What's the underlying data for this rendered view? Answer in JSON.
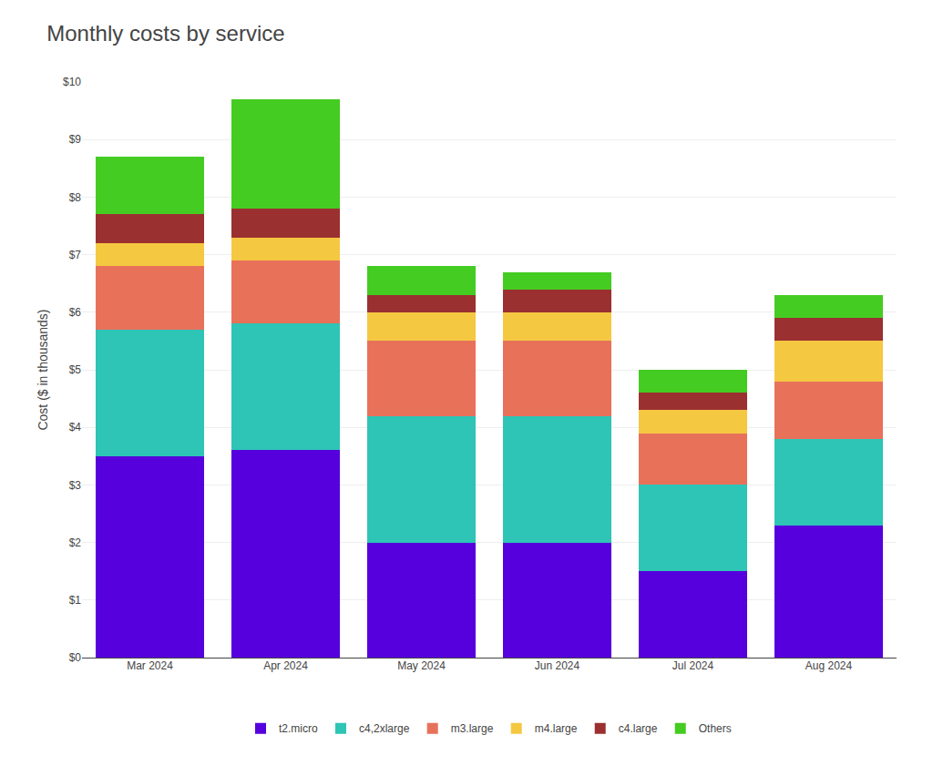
{
  "chart_data": {
    "type": "bar",
    "title": "Monthly costs by service",
    "ylabel": "Cost ($ in thousands)",
    "categories": [
      "Mar 2024",
      "Apr 2024",
      "May 2024",
      "Jun 2024",
      "Jul 2024",
      "Aug 2024"
    ],
    "series": [
      {
        "name": "t2.micro",
        "color": "#5500dd",
        "values": [
          3.5,
          3.6,
          2.0,
          2.0,
          1.5,
          2.3
        ]
      },
      {
        "name": "c4,2xlarge",
        "color": "#2ec4b6",
        "values": [
          2.2,
          2.2,
          2.2,
          2.2,
          1.5,
          1.5
        ]
      },
      {
        "name": "m3.large",
        "color": "#e8715a",
        "values": [
          1.1,
          1.1,
          1.3,
          1.3,
          0.9,
          1.0
        ]
      },
      {
        "name": "m4.large",
        "color": "#f5c842",
        "values": [
          0.4,
          0.4,
          0.5,
          0.5,
          0.4,
          0.7
        ]
      },
      {
        "name": "c4.large",
        "color": "#9b3030",
        "values": [
          0.5,
          0.5,
          0.3,
          0.4,
          0.3,
          0.4
        ]
      },
      {
        "name": "Others",
        "color": "#44cc22",
        "values": [
          1.0,
          1.9,
          0.5,
          0.3,
          0.4,
          0.4
        ]
      }
    ],
    "stacked": true,
    "ylim": [
      0,
      10
    ],
    "yticks": [
      {
        "value": 0,
        "label": "$0"
      },
      {
        "value": 1,
        "label": "$1"
      },
      {
        "value": 2,
        "label": "$2"
      },
      {
        "value": 3,
        "label": "$3"
      },
      {
        "value": 4,
        "label": "$4"
      },
      {
        "value": 5,
        "label": "$5"
      },
      {
        "value": 6,
        "label": "$6"
      },
      {
        "value": 7,
        "label": "$7"
      },
      {
        "value": 8,
        "label": "$8"
      },
      {
        "value": 9,
        "label": "$9"
      },
      {
        "value": 10,
        "label": "$10"
      }
    ],
    "grid": true,
    "legend": "bottom"
  }
}
